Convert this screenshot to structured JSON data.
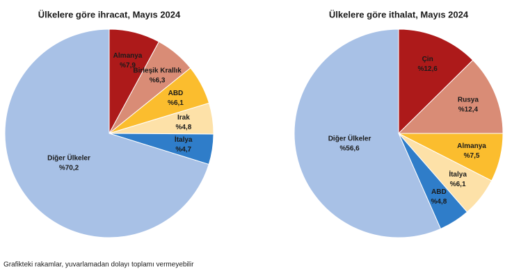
{
  "chart_data": [
    {
      "type": "pie",
      "title": "Ülkelere göre ihracat, Mayıs 2024",
      "categories": [
        "Almanya",
        "Birleşik Krallık",
        "ABD",
        "Irak",
        "İtalya",
        "Diğer Ülkeler"
      ],
      "values": [
        7.9,
        6.3,
        6.1,
        4.8,
        4.7,
        70.2
      ],
      "value_labels": [
        "%7,9",
        "%6,3",
        "%6,1",
        "%4,8",
        "%4,7",
        "%70,2"
      ],
      "colors": [
        "#ad1a1a",
        "#d98c76",
        "#fbbd2e",
        "#fde1a8",
        "#2f7dc9",
        "#a8c1e6"
      ]
    },
    {
      "type": "pie",
      "title": "Ülkelere göre ithalat, Mayıs 2024",
      "categories": [
        "Çin",
        "Rusya",
        "Almanya",
        "İtalya",
        "ABD",
        "Diğer Ülkeler"
      ],
      "values": [
        12.6,
        12.4,
        7.5,
        6.1,
        4.8,
        56.6
      ],
      "value_labels": [
        "%12,6",
        "%12,4",
        "%7,5",
        "%6,1",
        "%4,8",
        "%56,6"
      ],
      "colors": [
        "#ad1a1a",
        "#d98c76",
        "#fbbd2e",
        "#fde1a8",
        "#2f7dc9",
        "#a8c1e6"
      ]
    }
  ],
  "footnote": "Grafikteki rakamlar, yuvarlamadan dolayı toplamı vermeyebilir"
}
